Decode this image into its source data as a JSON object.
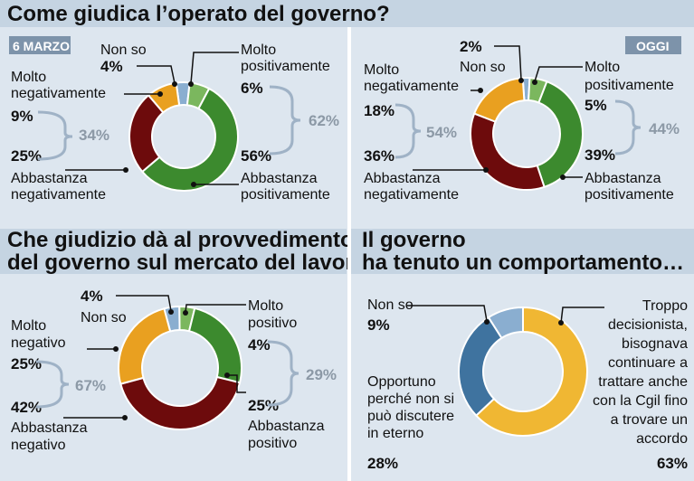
{
  "colors": {
    "molto_positivo": "#7bb75e",
    "abbastanza_positivo": "#3c8a2e",
    "abbastanza_negativo": "#6d0b0c",
    "molto_negativo": "#e9a020",
    "non_so": "#8aaed0",
    "opportuno": "#3f739f",
    "troppo": "#f0b733",
    "bracket": "#9fb2c6",
    "header_band": "#c5d4e2",
    "badge": "#7d93aa"
  },
  "headers": {
    "q1": "Come giudica l’operato del governo?",
    "q2_line1": "Che giudizio dà al provvedimento",
    "q2_line2": "del governo sul mercato del lavoro?",
    "q3_line1": "Il governo",
    "q3_line2": "ha tenuto un comportamento…"
  },
  "chart_data": [
    {
      "type": "pie",
      "badge": "6 MARZO",
      "labels": {
        "non_so": "Non so",
        "molto_pos_1": "Molto",
        "molto_pos_2": "positivamente",
        "abb_pos_1": "Abbastanza",
        "abb_pos_2": "positivamente",
        "abb_neg_1": "Abbastanza",
        "abb_neg_2": "negativamente",
        "molto_neg_1": "Molto",
        "molto_neg_2": "negativamente"
      },
      "values_text": {
        "non_so": "4%",
        "molto_pos": "6%",
        "abb_pos": "56%",
        "abb_neg": "25%",
        "molto_neg": "9%",
        "pos_total": "62%",
        "neg_total": "34%"
      },
      "slices": [
        {
          "value": 4,
          "color": "#8aaed0"
        },
        {
          "value": 6,
          "color": "#7bb75e"
        },
        {
          "value": 56,
          "color": "#3c8a2e"
        },
        {
          "value": 25,
          "color": "#6d0b0c"
        },
        {
          "value": 9,
          "color": "#e9a020"
        }
      ]
    },
    {
      "type": "pie",
      "badge": "OGGI",
      "labels": {
        "non_so": "Non so",
        "molto_pos_1": "Molto",
        "molto_pos_2": "positivamente",
        "abb_pos_1": "Abbastanza",
        "abb_pos_2": "positivamente",
        "abb_neg_1": "Abbastanza",
        "abb_neg_2": "negativamente",
        "molto_neg_1": "Molto",
        "molto_neg_2": "negativamente"
      },
      "values_text": {
        "non_so": "2%",
        "molto_pos": "5%",
        "abb_pos": "39%",
        "abb_neg": "36%",
        "molto_neg": "18%",
        "pos_total": "44%",
        "neg_total": "54%"
      },
      "slices": [
        {
          "value": 2,
          "color": "#8aaed0"
        },
        {
          "value": 5,
          "color": "#7bb75e"
        },
        {
          "value": 39,
          "color": "#3c8a2e"
        },
        {
          "value": 36,
          "color": "#6d0b0c"
        },
        {
          "value": 18,
          "color": "#e9a020"
        }
      ]
    },
    {
      "type": "pie",
      "labels": {
        "non_so": "Non so",
        "molto_pos_1": "Molto",
        "molto_pos_2": "positivo",
        "abb_pos_1": "Abbastanza",
        "abb_pos_2": "positivo",
        "abb_neg_1": "Abbastanza",
        "abb_neg_2": "negativo",
        "molto_neg_1": "Molto",
        "molto_neg_2": "negativo"
      },
      "values_text": {
        "non_so": "4%",
        "molto_pos": "4%",
        "abb_pos": "25%",
        "abb_neg": "42%",
        "molto_neg": "25%",
        "pos_total": "29%",
        "neg_total": "67%"
      },
      "slices": [
        {
          "value": 4,
          "color": "#8aaed0"
        },
        {
          "value": 4,
          "color": "#7bb75e"
        },
        {
          "value": 25,
          "color": "#3c8a2e"
        },
        {
          "value": 42,
          "color": "#6d0b0c"
        },
        {
          "value": 25,
          "color": "#e9a020"
        }
      ]
    },
    {
      "type": "pie",
      "labels": {
        "non_so": "Non so",
        "troppo": [
          "Troppo",
          "decisionista,",
          "bisognava",
          "continuare a",
          "trattare anche",
          "con la Cgil fino",
          "a trovare un",
          "accordo"
        ],
        "opportuno": [
          "Opportuno",
          "perché non si",
          "può discutere",
          "in eterno"
        ]
      },
      "values_text": {
        "troppo": "63%",
        "opportuno": "28%",
        "non_so": "9%"
      },
      "slices": [
        {
          "value": 63,
          "color": "#f0b733"
        },
        {
          "value": 28,
          "color": "#3f739f"
        },
        {
          "value": 9,
          "color": "#8aaed0"
        }
      ]
    }
  ]
}
